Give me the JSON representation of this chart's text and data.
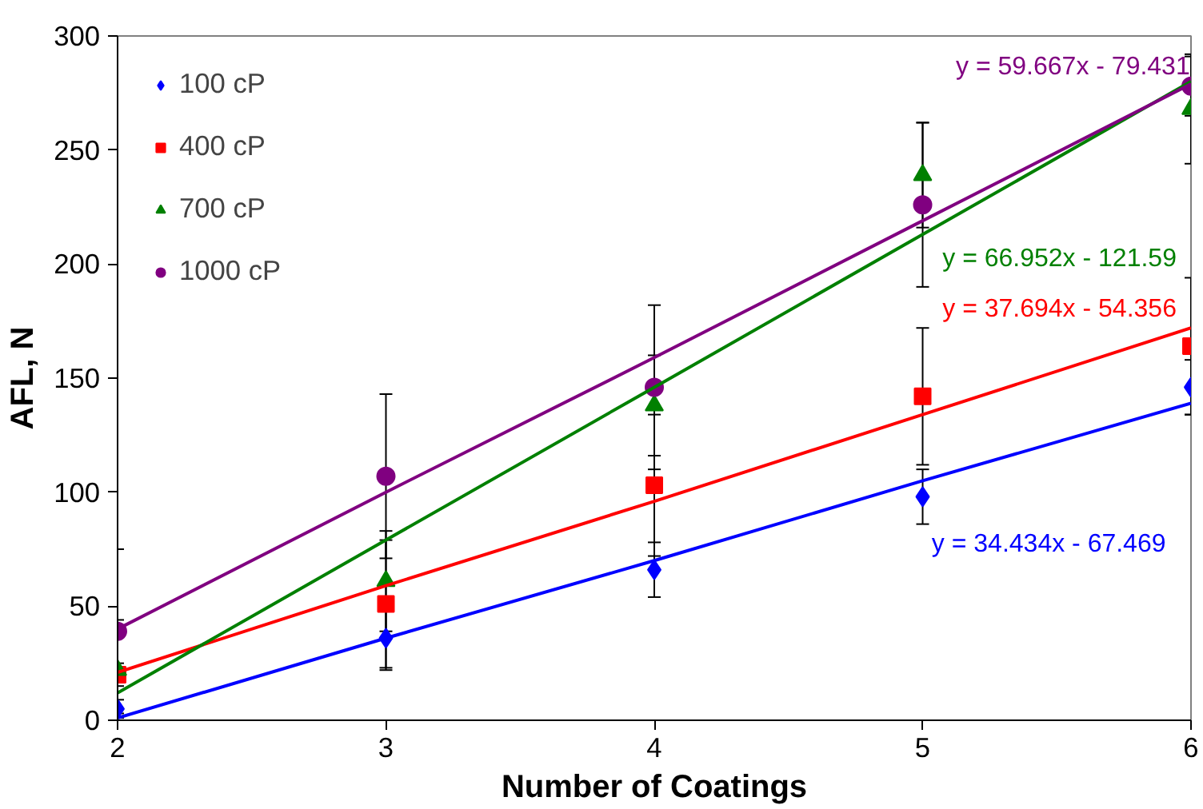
{
  "chart_data": {
    "type": "scatter",
    "xlabel": "Number of Coatings",
    "ylabel": "AFL, N",
    "x": [
      2,
      3,
      4,
      5,
      6
    ],
    "xlim": [
      2,
      6
    ],
    "xticks": [
      2,
      3,
      4,
      5,
      6
    ],
    "ylim": [
      0,
      300
    ],
    "yticks": [
      0,
      50,
      100,
      150,
      200,
      250,
      300
    ],
    "grid": false,
    "legend": "top left",
    "series": [
      {
        "name": "100 cP",
        "color": "#0000ff",
        "marker": "diamond",
        "values": [
          5,
          36,
          66,
          98,
          146
        ],
        "errors": [
          4,
          14,
          12,
          12,
          12
        ]
      },
      {
        "name": "400 cP",
        "color": "#ff0000",
        "marker": "square",
        "values": [
          20,
          51,
          103,
          142,
          164
        ],
        "errors": [
          5,
          28,
          31,
          30,
          30
        ]
      },
      {
        "name": "700 cP",
        "color": "#008000",
        "marker": "triangle",
        "values": [
          22,
          61,
          138,
          239,
          268
        ],
        "errors": [
          22,
          22,
          22,
          23,
          24
        ]
      },
      {
        "name": "1000 cP",
        "color": "#800080",
        "marker": "circle",
        "values": [
          39,
          107,
          146,
          226,
          278
        ],
        "errors": [
          36,
          36,
          36,
          36,
          13
        ]
      },
      {
        "type": "line",
        "color": "#0000ff",
        "values": [
          1,
          36,
          70,
          105,
          139
        ]
      },
      {
        "type": "line",
        "color": "#ff0000",
        "values": [
          21,
          59,
          96,
          134,
          172
        ]
      },
      {
        "type": "line",
        "color": "#008000",
        "values": [
          12,
          79,
          146,
          213,
          280
        ]
      },
      {
        "type": "line",
        "color": "#800080",
        "values": [
          40,
          100,
          159,
          219,
          279
        ]
      }
    ],
    "annotations": [
      "y = 34.434x - 67.469",
      "y = 37.694x - 54.356",
      "y = 66.952x - 121.59",
      "y = 59.667x - 79.431"
    ]
  }
}
